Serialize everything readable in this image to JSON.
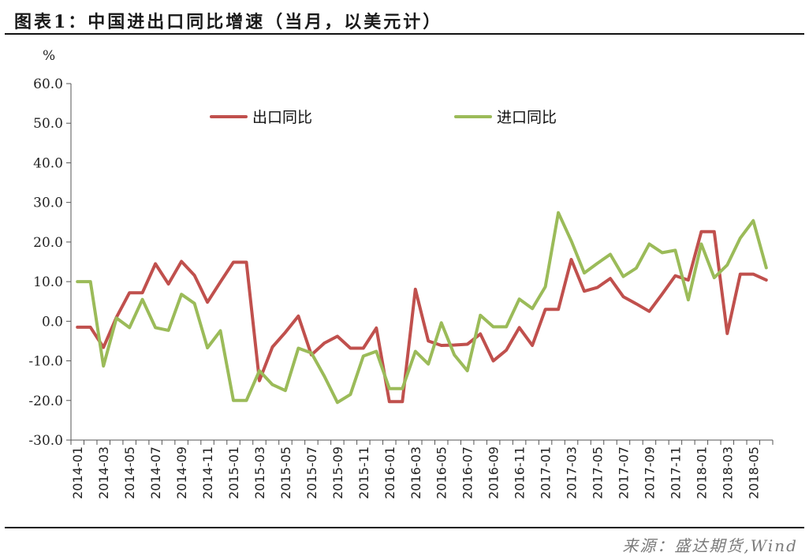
{
  "header": {
    "title": "图表1：中国进出口同比增速（当月，以美元计）"
  },
  "footer": {
    "source": "来源：盛达期货,Wind"
  },
  "chart_data": {
    "type": "line",
    "unit_label": "%",
    "ylim": [
      -30,
      60
    ],
    "yticks": [
      "60.0",
      "50.0",
      "40.0",
      "30.0",
      "20.0",
      "10.0",
      "0.0",
      "-10.0",
      "-20.0",
      "-30.0"
    ],
    "xtick_labels": [
      "2014-01",
      "2014-03",
      "2014-05",
      "2014-07",
      "2014-09",
      "2014-11",
      "2015-01",
      "2015-03",
      "2015-05",
      "2015-07",
      "2015-09",
      "2015-11",
      "2016-01",
      "2016-03",
      "2016-05",
      "2016-07",
      "2016-09",
      "2016-11",
      "2017-01",
      "2017-03",
      "2017-05",
      "2017-07",
      "2017-09",
      "2017-11",
      "2018-01",
      "2018-03",
      "2018-05"
    ],
    "legend_position": "top",
    "series": [
      {
        "name": "出口同比",
        "color": "#c0504d",
        "values": [
          -1.5,
          -1.5,
          -6.6,
          1.0,
          7.2,
          7.2,
          14.5,
          9.4,
          15.1,
          11.6,
          4.8,
          9.9,
          14.9,
          14.9,
          -15.0,
          -6.5,
          -2.8,
          1.3,
          -8.5,
          -5.5,
          -3.8,
          -6.8,
          -6.8,
          -1.7,
          -20.3,
          -20.3,
          8.1,
          -5.0,
          -6.1,
          -6.0,
          -5.8,
          -3.2,
          -10.0,
          -7.3,
          -1.6,
          -6.1,
          3.0,
          3.0,
          15.6,
          7.6,
          8.5,
          10.8,
          6.2,
          4.4,
          2.5,
          6.9,
          11.5,
          10.4,
          22.6,
          22.6,
          -3.1,
          11.9,
          11.9,
          10.4
        ]
      },
      {
        "name": "进口同比",
        "color": "#9bbb59",
        "values": [
          10.0,
          10.0,
          -11.3,
          0.8,
          -1.6,
          5.5,
          -1.6,
          -2.3,
          6.8,
          4.5,
          -6.7,
          -2.4,
          -20.0,
          -20.0,
          -12.5,
          -16.0,
          -17.5,
          -6.8,
          -8.0,
          -13.9,
          -20.5,
          -18.5,
          -8.8,
          -7.6,
          -17.0,
          -17.0,
          -7.6,
          -10.8,
          -0.4,
          -8.5,
          -12.5,
          1.5,
          -1.4,
          -1.4,
          5.6,
          3.2,
          8.7,
          27.4,
          20.3,
          12.2,
          14.6,
          16.9,
          11.3,
          13.4,
          19.5,
          17.3,
          17.9,
          5.4,
          19.5,
          11.0,
          14.2,
          21.0,
          25.4,
          13.5
        ]
      }
    ]
  }
}
